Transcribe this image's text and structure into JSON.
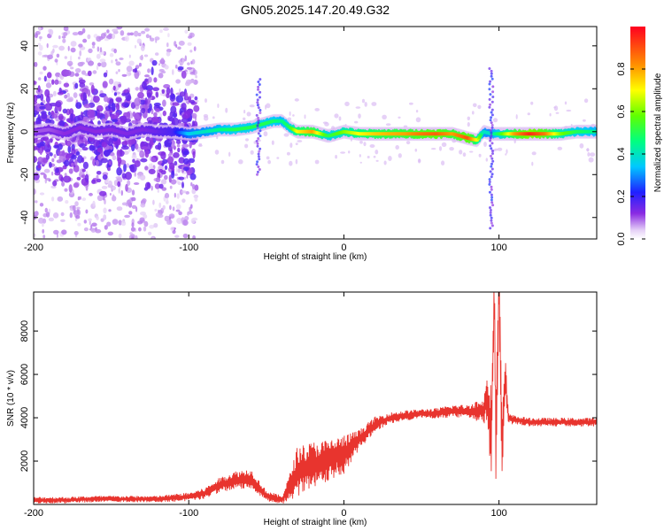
{
  "title": "GN05.2025.147.20.49.G32",
  "chart_data": [
    {
      "type": "heatmap",
      "xlabel": "Height of straight line (km)",
      "ylabel": "Frequency (Hz)",
      "xlim": [
        -200,
        163
      ],
      "ylim": [
        -50,
        49
      ],
      "xticks": [
        -200,
        -100,
        0,
        100
      ],
      "yticks": [
        -40,
        -20,
        0,
        20,
        40
      ],
      "colorbar": {
        "label": "Normalized spectral amplitude",
        "range": [
          0,
          1
        ],
        "ticks": [
          0.0,
          0.2,
          0.4,
          0.6,
          0.8
        ],
        "colormap": "rainbow (violet to red)"
      },
      "ridge": [
        {
          "x": -200,
          "y": 0,
          "a": 0.1
        },
        {
          "x": -190,
          "y": 1,
          "a": 0.1
        },
        {
          "x": -180,
          "y": -1,
          "a": 0.12
        },
        {
          "x": -170,
          "y": 2,
          "a": 0.12
        },
        {
          "x": -160,
          "y": 0,
          "a": 0.12
        },
        {
          "x": -150,
          "y": 1,
          "a": 0.12
        },
        {
          "x": -140,
          "y": -1,
          "a": 0.13
        },
        {
          "x": -130,
          "y": 1,
          "a": 0.13
        },
        {
          "x": -120,
          "y": 0,
          "a": 0.15
        },
        {
          "x": -110,
          "y": 0,
          "a": 0.18
        },
        {
          "x": -100,
          "y": -1,
          "a": 0.35
        },
        {
          "x": -90,
          "y": 0,
          "a": 0.4
        },
        {
          "x": -80,
          "y": 1,
          "a": 0.45
        },
        {
          "x": -70,
          "y": 1,
          "a": 0.5
        },
        {
          "x": -60,
          "y": 2,
          "a": 0.5
        },
        {
          "x": -50,
          "y": 4,
          "a": 0.5
        },
        {
          "x": -45,
          "y": 5,
          "a": 0.48
        },
        {
          "x": -40,
          "y": 5,
          "a": 0.45
        },
        {
          "x": -35,
          "y": 2,
          "a": 0.5
        },
        {
          "x": -30,
          "y": 0,
          "a": 0.7
        },
        {
          "x": -20,
          "y": 0,
          "a": 0.8
        },
        {
          "x": -10,
          "y": -2,
          "a": 0.5
        },
        {
          "x": 0,
          "y": 0,
          "a": 0.6
        },
        {
          "x": 10,
          "y": -1,
          "a": 0.7
        },
        {
          "x": 20,
          "y": -1,
          "a": 0.75
        },
        {
          "x": 30,
          "y": -1,
          "a": 0.78
        },
        {
          "x": 40,
          "y": -1,
          "a": 0.8
        },
        {
          "x": 50,
          "y": -1,
          "a": 0.85
        },
        {
          "x": 60,
          "y": -1,
          "a": 0.88
        },
        {
          "x": 70,
          "y": -1,
          "a": 0.8
        },
        {
          "x": 80,
          "y": -3,
          "a": 0.9
        },
        {
          "x": 86,
          "y": -4,
          "a": 0.7
        },
        {
          "x": 90,
          "y": 0,
          "a": 0.4
        },
        {
          "x": 95,
          "y": -1,
          "a": 0.4
        },
        {
          "x": 100,
          "y": -1,
          "a": 0.5
        },
        {
          "x": 110,
          "y": -1,
          "a": 0.8
        },
        {
          "x": 120,
          "y": -1,
          "a": 0.95
        },
        {
          "x": 130,
          "y": -1,
          "a": 0.85
        },
        {
          "x": 140,
          "y": -1,
          "a": 0.6
        },
        {
          "x": 150,
          "y": 0,
          "a": 0.5
        },
        {
          "x": 163,
          "y": 0,
          "a": 0.45
        }
      ],
      "noise_x_range": [
        -200,
        -95
      ]
    },
    {
      "type": "line",
      "xlabel": "Height of straight line (km)",
      "ylabel": "SNR (10 * v/v)",
      "xlim": [
        -200,
        163
      ],
      "ylim": [
        0,
        9800
      ],
      "xticks": [
        -200,
        -100,
        0,
        100
      ],
      "yticks": [
        2000,
        4000,
        6000,
        8000
      ],
      "color": "#e8342e",
      "series": [
        {
          "x": [
            -200,
            -180,
            -160,
            -140,
            -120,
            -110,
            -100,
            -90,
            -80,
            -70,
            -60,
            -50,
            -40,
            -35,
            -30,
            -20,
            -10,
            -5,
            0,
            10,
            20,
            30,
            40,
            50,
            60,
            70,
            80,
            85,
            90,
            92,
            95,
            97,
            98,
            100,
            102,
            104,
            106,
            110,
            120,
            130,
            140,
            150,
            163
          ],
          "y": [
            200,
            200,
            250,
            250,
            250,
            300,
            350,
            500,
            900,
            1100,
            1200,
            400,
            200,
            800,
            1500,
            1800,
            2000,
            2200,
            2300,
            3000,
            3700,
            4000,
            4100,
            4200,
            4200,
            4300,
            4300,
            4300,
            4300,
            5000,
            3500,
            9200,
            3000,
            9800,
            2500,
            6000,
            4000,
            3900,
            3800,
            3800,
            3800,
            3800,
            3800
          ],
          "amp": [
            150,
            150,
            150,
            150,
            150,
            180,
            200,
            250,
            350,
            450,
            450,
            250,
            200,
            600,
            1200,
            1100,
            1000,
            900,
            900,
            450,
            350,
            250,
            250,
            200,
            250,
            300,
            300,
            500,
            500,
            1500,
            2000,
            1800,
            2000,
            1800,
            1500,
            1000,
            300,
            200,
            200,
            200,
            200,
            200,
            200
          ]
        }
      ]
    }
  ]
}
